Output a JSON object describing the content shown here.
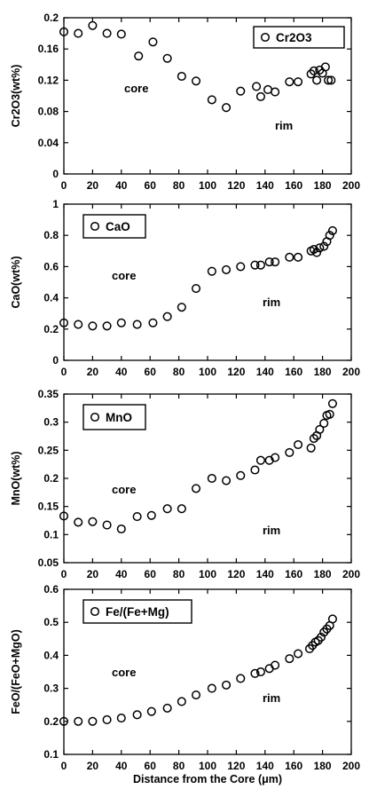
{
  "chart_data": [
    {
      "type": "scatter",
      "xlabel": "",
      "ylabel": "Cr2O3(wt%)",
      "xlim": [
        0,
        200
      ],
      "ylim": [
        0,
        0.2
      ],
      "xticks": [
        "0",
        "20",
        "40",
        "60",
        "80",
        "100",
        "120",
        "140",
        "160",
        "180",
        "200"
      ],
      "yticks": [
        "0",
        "0.04",
        "0.08",
        "0.12",
        "0.16",
        "0.2"
      ],
      "legend": "top-right",
      "grid": false,
      "annotations": {
        "core": "core",
        "rim": "rim"
      },
      "series": [
        {
          "name": "Cr2O3",
          "x": [
            0,
            10,
            20,
            30,
            40,
            52,
            62,
            72,
            82,
            92,
            103,
            113,
            123,
            134,
            137,
            142,
            147,
            157,
            163,
            172,
            174,
            176,
            178,
            180,
            182,
            184,
            186
          ],
          "y": [
            0.182,
            0.18,
            0.19,
            0.18,
            0.179,
            0.151,
            0.169,
            0.148,
            0.125,
            0.119,
            0.095,
            0.085,
            0.106,
            0.112,
            0.099,
            0.108,
            0.105,
            0.118,
            0.118,
            0.128,
            0.132,
            0.12,
            0.133,
            0.129,
            0.137,
            0.12,
            0.12
          ]
        }
      ]
    },
    {
      "type": "scatter",
      "xlabel": "",
      "ylabel": "CaO(wt%)",
      "xlim": [
        0,
        200
      ],
      "ylim": [
        0,
        1
      ],
      "xticks": [
        "0",
        "20",
        "40",
        "60",
        "80",
        "100",
        "120",
        "140",
        "160",
        "180",
        "200"
      ],
      "yticks": [
        "0",
        "0.2",
        "0.4",
        "0.6",
        "0.8",
        "1"
      ],
      "legend": "top-left",
      "grid": false,
      "annotations": {
        "core": "core",
        "rim": "rim"
      },
      "series": [
        {
          "name": "CaO",
          "x": [
            0,
            10,
            20,
            30,
            40,
            51,
            62,
            72,
            82,
            92,
            103,
            113,
            123,
            133,
            137,
            143,
            147,
            157,
            163,
            172,
            174,
            176,
            178,
            181,
            183,
            185,
            187
          ],
          "y": [
            0.24,
            0.23,
            0.22,
            0.22,
            0.24,
            0.23,
            0.24,
            0.28,
            0.34,
            0.46,
            0.57,
            0.58,
            0.6,
            0.61,
            0.61,
            0.63,
            0.63,
            0.66,
            0.66,
            0.7,
            0.71,
            0.69,
            0.72,
            0.73,
            0.76,
            0.8,
            0.83
          ]
        }
      ]
    },
    {
      "type": "scatter",
      "xlabel": "",
      "ylabel": "MnO(wt%)",
      "xlim": [
        0,
        200
      ],
      "ylim": [
        0.05,
        0.35
      ],
      "xticks": [
        "0",
        "20",
        "40",
        "60",
        "80",
        "100",
        "120",
        "140",
        "160",
        "180",
        "200"
      ],
      "yticks": [
        "0.05",
        "0.1",
        "0.15",
        "0.2",
        "0.25",
        "0.3",
        "0.35"
      ],
      "legend": "top-left",
      "grid": false,
      "annotations": {
        "core": "core",
        "rim": "rim"
      },
      "series": [
        {
          "name": "MnO",
          "x": [
            0,
            10,
            20,
            30,
            40,
            51,
            61,
            72,
            82,
            92,
            103,
            113,
            123,
            133,
            137,
            143,
            147,
            157,
            163,
            172,
            174,
            176,
            178,
            181,
            183,
            185,
            187
          ],
          "y": [
            0.133,
            0.122,
            0.123,
            0.117,
            0.11,
            0.132,
            0.134,
            0.146,
            0.146,
            0.182,
            0.2,
            0.196,
            0.205,
            0.215,
            0.232,
            0.232,
            0.237,
            0.246,
            0.26,
            0.254,
            0.271,
            0.276,
            0.287,
            0.298,
            0.312,
            0.314,
            0.333
          ]
        }
      ]
    },
    {
      "type": "scatter",
      "xlabel": "Distance from the Core (μm)",
      "ylabel": "FeO/(FeO+MgO)",
      "xlim": [
        0,
        200
      ],
      "ylim": [
        0.1,
        0.6
      ],
      "xticks": [
        "0",
        "20",
        "40",
        "60",
        "80",
        "100",
        "120",
        "140",
        "160",
        "180",
        "200"
      ],
      "yticks": [
        "0.1",
        "0.2",
        "0.3",
        "0.4",
        "0.5",
        "0.6"
      ],
      "legend": "top-left",
      "grid": false,
      "annotations": {
        "core": "core",
        "rim": "rim"
      },
      "series": [
        {
          "name": "Fe/(Fe+Mg)",
          "x": [
            0,
            10,
            20,
            30,
            40,
            51,
            61,
            72,
            82,
            92,
            103,
            113,
            123,
            133,
            137,
            143,
            147,
            157,
            163,
            171,
            173,
            175,
            177,
            179,
            181,
            183,
            185,
            187
          ],
          "y": [
            0.2,
            0.2,
            0.2,
            0.205,
            0.21,
            0.22,
            0.23,
            0.24,
            0.26,
            0.28,
            0.3,
            0.31,
            0.33,
            0.345,
            0.35,
            0.36,
            0.37,
            0.39,
            0.405,
            0.42,
            0.43,
            0.44,
            0.445,
            0.455,
            0.47,
            0.48,
            0.49,
            0.51
          ]
        }
      ]
    }
  ]
}
